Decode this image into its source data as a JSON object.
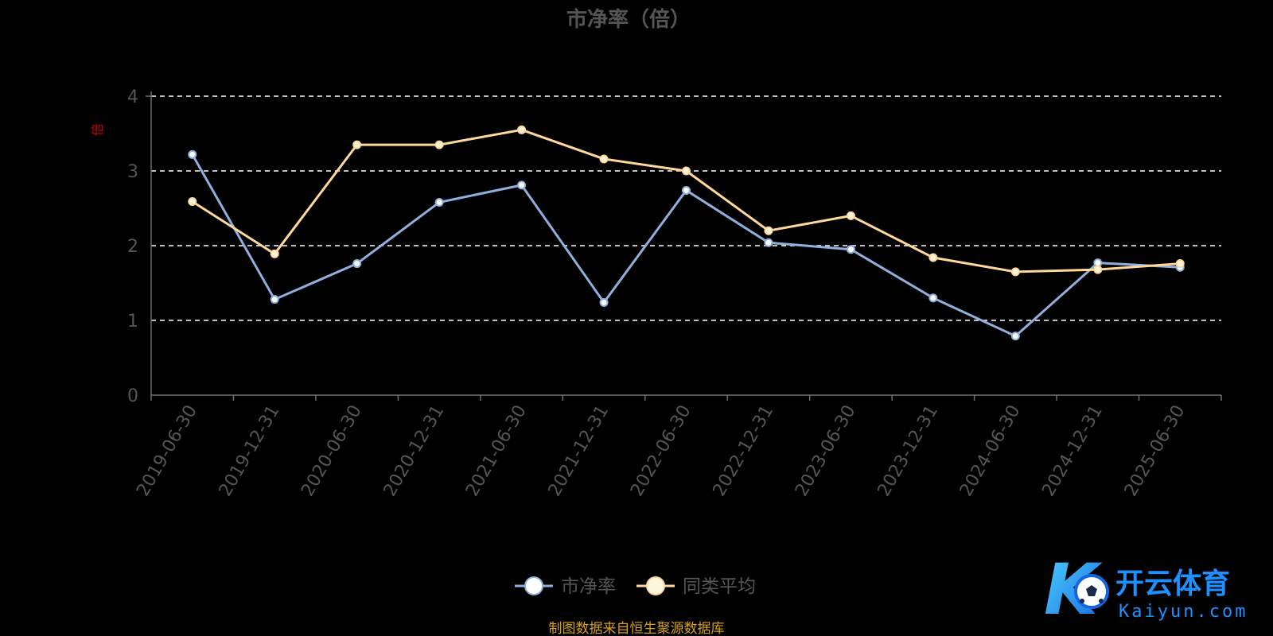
{
  "chart_data": {
    "type": "line",
    "title": "市净率（倍）",
    "ylabel": "倍",
    "ylim": [
      0,
      4
    ],
    "yticks": [
      "0",
      "1",
      "2",
      "3",
      "4"
    ],
    "grid": true,
    "legend_position": "bottom-center",
    "categories": [
      "2019-06-30",
      "2019-12-31",
      "2020-06-30",
      "2020-12-31",
      "2021-06-30",
      "2021-12-31",
      "2022-06-30",
      "2022-12-31",
      "2023-06-30",
      "2023-12-31",
      "2024-06-30",
      "2024-12-31",
      "2025-06-30"
    ],
    "series": [
      {
        "name": "市净率",
        "color": "#8fb0dc",
        "marker_fill": "#ffffff",
        "values": [
          3.22,
          1.28,
          1.76,
          2.58,
          2.81,
          1.24,
          2.74,
          2.04,
          1.95,
          1.3,
          0.79,
          1.77,
          1.71
        ]
      },
      {
        "name": "同类平均",
        "color": "#ffd89a",
        "marker_fill": "#fff6e0",
        "values": [
          2.59,
          1.89,
          3.35,
          3.35,
          3.55,
          3.16,
          3.0,
          2.2,
          2.4,
          1.84,
          1.65,
          1.68,
          1.76
        ]
      }
    ]
  },
  "source_note": "制图数据来自恒生聚源数据库",
  "watermark": {
    "brand_cn": "开云体育",
    "brand_en": "Kaiyun.com",
    "letter": "K"
  },
  "colors": {
    "title": "#555555",
    "axis": "#6e6e6e",
    "tick_label": "#555555",
    "grid": "#ffffff",
    "ylabel": "#cc0000",
    "source_note": "#d4a017",
    "legend_text": "#555555",
    "brand_blue": "#1e90ff"
  }
}
